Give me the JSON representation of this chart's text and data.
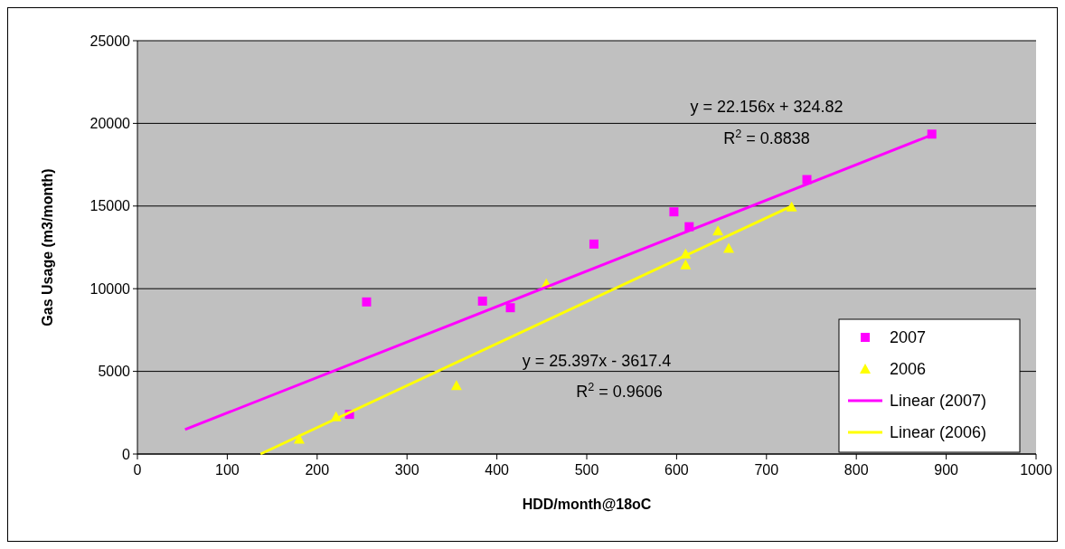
{
  "chart_data": {
    "type": "scatter",
    "xlabel": "HDD/month@18oC",
    "ylabel": "Gas Usage (m3/month)",
    "xlim": [
      0,
      1000
    ],
    "xticks": [
      0,
      100,
      200,
      300,
      400,
      500,
      600,
      700,
      800,
      900,
      1000
    ],
    "ylim": [
      0,
      25000
    ],
    "yticks": [
      0,
      5000,
      10000,
      15000,
      20000,
      25000
    ],
    "grid": "y",
    "legend": "bottom right",
    "series": [
      {
        "name": "2007",
        "color": "#ff00ff",
        "marker": "square",
        "x": [
          255,
          236,
          384,
          415,
          508,
          597,
          614,
          745,
          884
        ],
        "values": [
          9200,
          2400,
          9250,
          8850,
          12700,
          14650,
          13750,
          16600,
          19350
        ]
      },
      {
        "name": "2006",
        "color": "#ffff00",
        "marker": "triangle",
        "x": [
          180,
          221,
          355,
          455,
          610,
          610,
          646,
          658,
          728
        ],
        "values": [
          900,
          2250,
          4150,
          10300,
          12100,
          11450,
          13500,
          12450,
          14950
        ]
      },
      {
        "name": "Linear (2007)",
        "type": "line",
        "color": "#ff00ff",
        "marker": "none",
        "x": [
          53,
          884
        ],
        "values": [
          1480,
          19300
        ]
      },
      {
        "name": "Linear (2006)",
        "type": "line",
        "color": "#ffff00",
        "marker": "none",
        "x": [
          137,
          728
        ],
        "values": [
          0,
          15000
        ]
      }
    ],
    "annotations": [
      "y = 22.156x + 324.82",
      "R$^{2}$ = 0.8838",
      "y = 25.397x - 3617.4",
      "R$^{2}$ = 0.9606"
    ]
  }
}
